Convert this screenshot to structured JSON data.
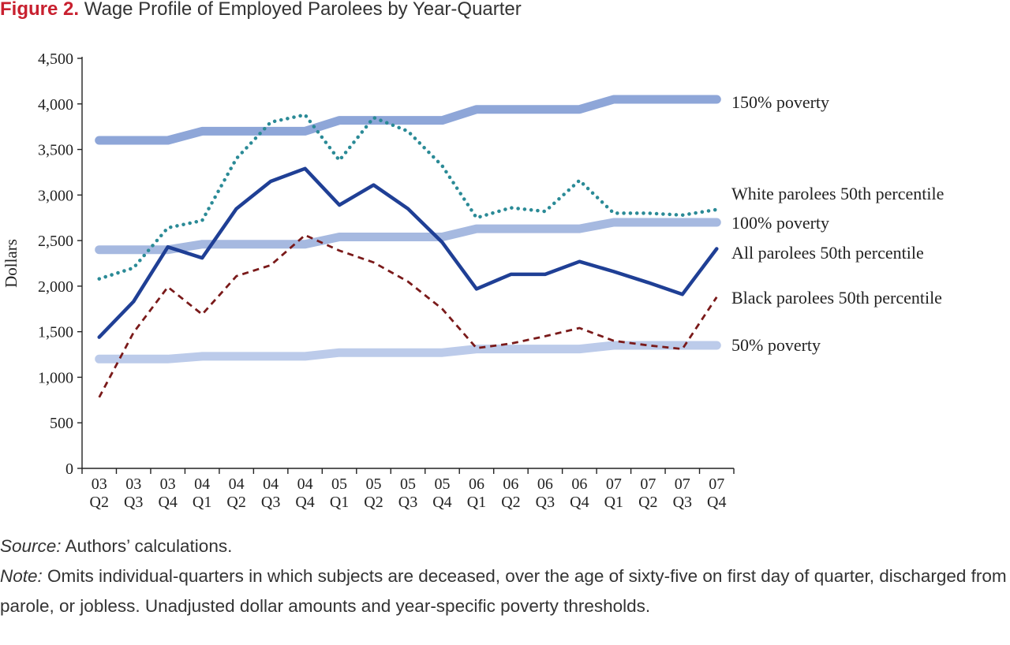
{
  "figure": {
    "label": "Figure 2.",
    "title": "Wage Profile of Employed Parolees by Year-Quarter"
  },
  "chart_data": {
    "type": "line",
    "title": "Wage Profile of Employed Parolees by Year-Quarter",
    "xlabel": "",
    "ylabel": "Dollars",
    "ylim": [
      0,
      4500
    ],
    "yticks": [
      0,
      500,
      1000,
      1500,
      2000,
      2500,
      3000,
      3500,
      4000,
      4500
    ],
    "ytick_labels": [
      "0",
      "500",
      "1,000",
      "1,500",
      "2,000",
      "2,500",
      "3,000",
      "3,500",
      "4,000",
      "4,500"
    ],
    "categories": [
      [
        "03",
        "Q2"
      ],
      [
        "03",
        "Q3"
      ],
      [
        "03",
        "Q4"
      ],
      [
        "04",
        "Q1"
      ],
      [
        "04",
        "Q2"
      ],
      [
        "04",
        "Q3"
      ],
      [
        "04",
        "Q4"
      ],
      [
        "05",
        "Q1"
      ],
      [
        "05",
        "Q2"
      ],
      [
        "05",
        "Q3"
      ],
      [
        "05",
        "Q4"
      ],
      [
        "06",
        "Q1"
      ],
      [
        "06",
        "Q2"
      ],
      [
        "06",
        "Q3"
      ],
      [
        "06",
        "Q4"
      ],
      [
        "07",
        "Q1"
      ],
      [
        "07",
        "Q2"
      ],
      [
        "07",
        "Q3"
      ],
      [
        "07",
        "Q4"
      ]
    ],
    "grid": false,
    "legend": "direct labels at right end of each line",
    "series": [
      {
        "name": "150% poverty",
        "color": "#8ea6d8",
        "style": "thick-solid",
        "values": [
          3600,
          3600,
          3600,
          3700,
          3700,
          3700,
          3700,
          3820,
          3820,
          3820,
          3820,
          3940,
          3940,
          3940,
          3940,
          4050,
          4050,
          4050,
          4050
        ]
      },
      {
        "name": "White parolees 50th percentile",
        "color": "#2a8a96",
        "style": "dotted",
        "values": [
          2080,
          2200,
          2640,
          2720,
          3400,
          3800,
          3880,
          3380,
          3850,
          3700,
          3320,
          2750,
          2860,
          2820,
          3160,
          2800,
          2800,
          2780,
          2840
        ]
      },
      {
        "name": "100% poverty",
        "color": "#a6b9e0",
        "style": "thick-solid",
        "values": [
          2400,
          2400,
          2400,
          2460,
          2460,
          2460,
          2460,
          2540,
          2540,
          2540,
          2540,
          2630,
          2630,
          2630,
          2630,
          2700,
          2700,
          2700,
          2700
        ]
      },
      {
        "name": "All parolees 50th percentile",
        "color": "#1f3f95",
        "style": "solid",
        "values": [
          1440,
          1830,
          2430,
          2310,
          2850,
          3150,
          3290,
          2890,
          3110,
          2850,
          2480,
          1970,
          2130,
          2130,
          2270,
          2160,
          2040,
          1910,
          2410
        ]
      },
      {
        "name": "Black parolees 50th percentile",
        "color": "#7a1a1a",
        "style": "dashed",
        "values": [
          780,
          1490,
          1990,
          1690,
          2110,
          2230,
          2560,
          2390,
          2260,
          2050,
          1750,
          1320,
          1370,
          1450,
          1540,
          1400,
          1350,
          1310,
          1880
        ]
      },
      {
        "name": "50% poverty",
        "color": "#bccbea",
        "style": "thick-solid",
        "values": [
          1200,
          1200,
          1200,
          1230,
          1230,
          1230,
          1230,
          1270,
          1270,
          1270,
          1270,
          1310,
          1310,
          1310,
          1310,
          1350,
          1350,
          1350,
          1350
        ]
      }
    ]
  },
  "notes": {
    "source_label": "Source:",
    "source_text": " Authors’ calculations.",
    "note_label": "Note:",
    "note_text": " Omits individual-quarters in which subjects are deceased, over the age of sixty-five on first day of quarter, discharged from parole, or jobless. Unadjusted dollar amounts and year-specific poverty thresholds."
  }
}
